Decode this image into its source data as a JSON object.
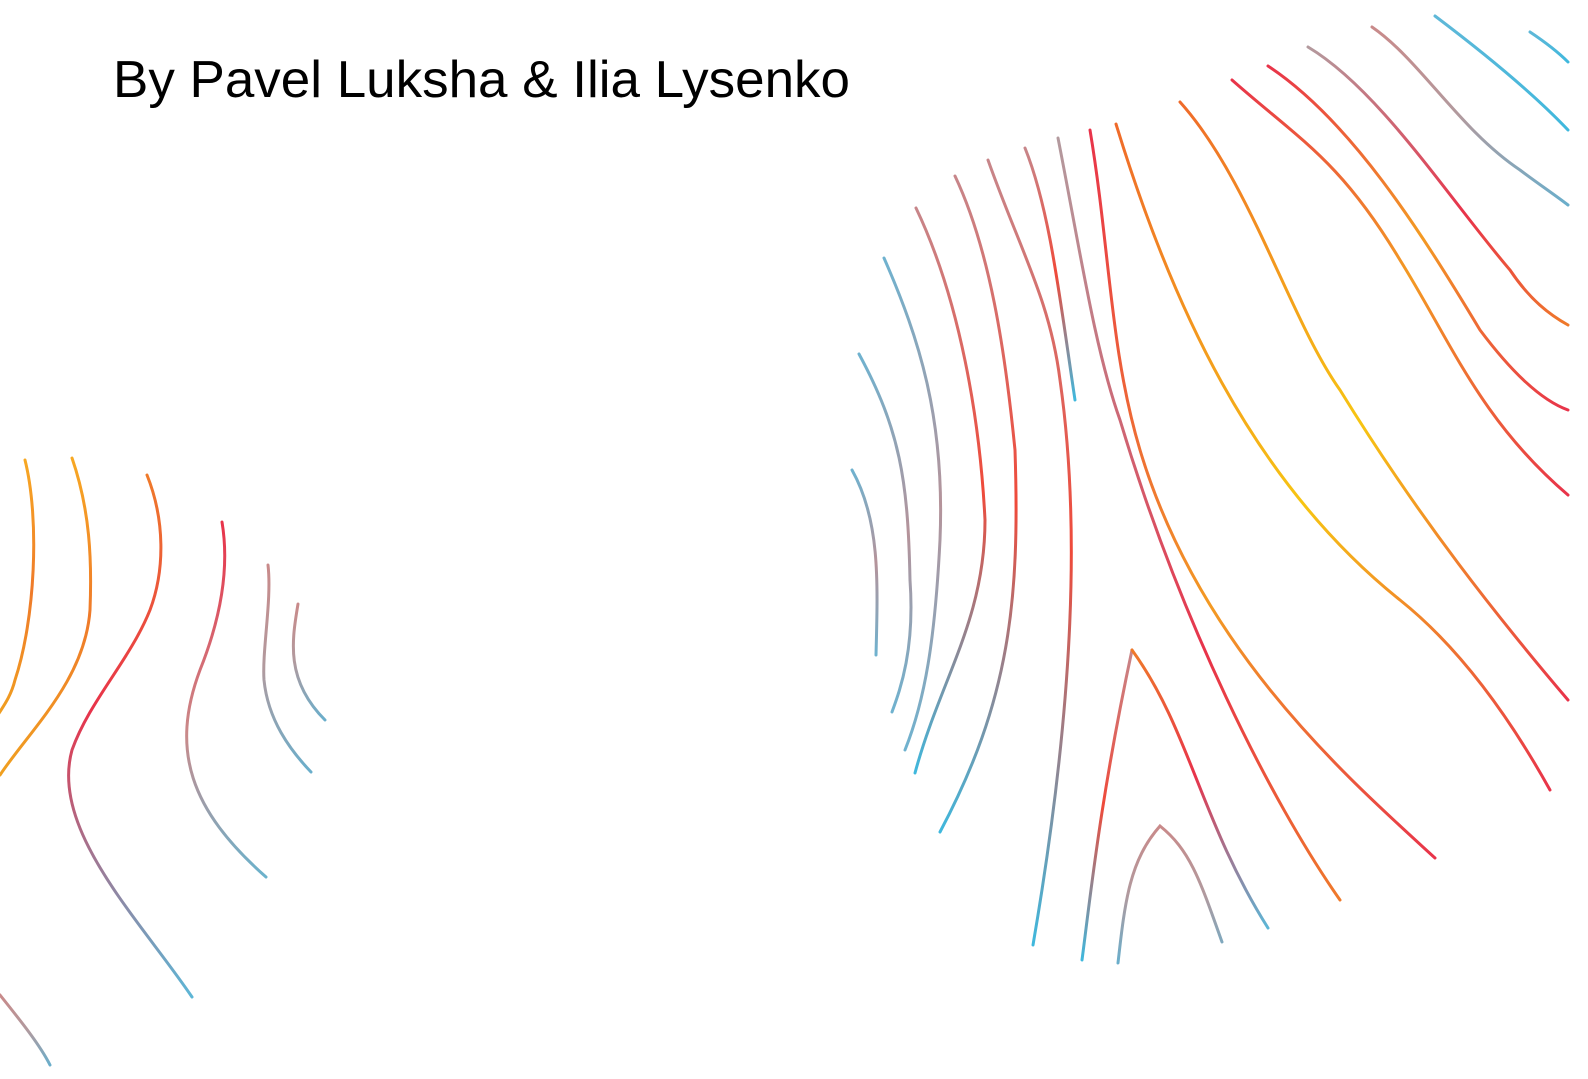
{
  "byline": "By Pavel Luksha & Ilia Lysenko"
}
